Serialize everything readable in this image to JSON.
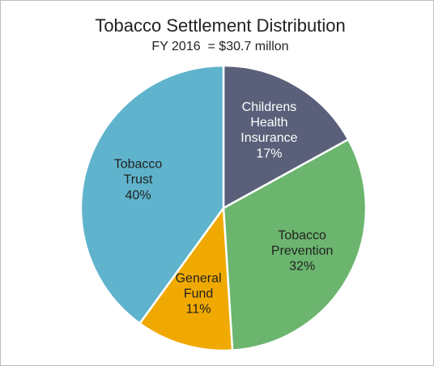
{
  "chart_data": {
    "type": "pie",
    "title": "Tobacco Settlement Distribution",
    "subtitle": "FY 2016  = $30.7 millon",
    "categories": [
      "Childrens Health Insurance",
      "Tobacco Prevention",
      "General Fund",
      "Tobacco Trust"
    ],
    "values": [
      17,
      32,
      11,
      40
    ],
    "value_labels": [
      "17%",
      "32%",
      "11%",
      "40%"
    ],
    "colors": [
      "#5a6079",
      "#6bb56e",
      "#f0a900",
      "#5fb3cc"
    ]
  }
}
